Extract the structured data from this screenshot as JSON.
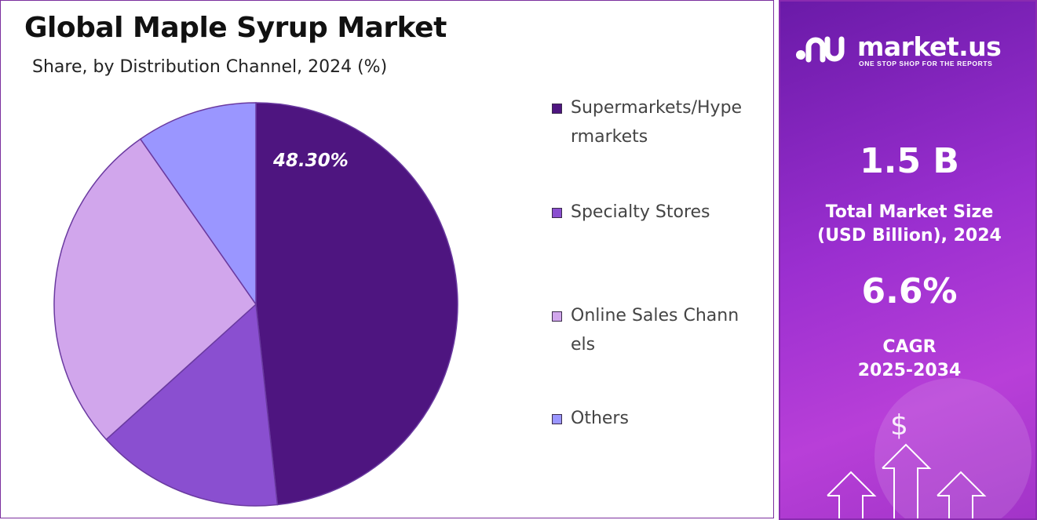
{
  "chart": {
    "title": "Global Maple Syrup Market",
    "subtitle": "Share, by  Distribution Channel, 2024 (%)"
  },
  "chart_data": {
    "type": "pie",
    "title": "Global Maple Syrup Market",
    "subtitle": "Share, by  Distribution Channel, 2024 (%)",
    "categories": [
      "Supermarkets/Hypermarkets",
      "Specialty Stores",
      "Online Sales Channels",
      "Others"
    ],
    "values": [
      48.3,
      15.0,
      27.0,
      9.7
    ],
    "data_labels": [
      "48.30%",
      "",
      "",
      ""
    ],
    "colors": [
      "#4e1580",
      "#8a4fd0",
      "#d1a6ec",
      "#9a96ff"
    ],
    "legend_position": "right"
  },
  "legend": {
    "items": [
      {
        "label": "Supermarkets/Hypermarkets",
        "color": "#4e1580"
      },
      {
        "label": "Specialty Stores",
        "color": "#8a4fd0"
      },
      {
        "label": "Online Sales Channels",
        "color": "#d1a6ec"
      },
      {
        "label": "Others",
        "color": "#9a96ff"
      }
    ]
  },
  "info": {
    "brand_name": "market.us",
    "brand_tagline": "ONE STOP SHOP FOR THE REPORTS",
    "market_size_value": "1.5 B",
    "market_size_label_1": "Total Market Size",
    "market_size_label_2": "(USD Billion), 2024",
    "cagr_value": "6.6%",
    "cagr_label_1": "CAGR",
    "cagr_label_2": "2025-2034",
    "icons": [
      "market-us-logo-icon",
      "dollar-icon",
      "growth-arrows-icon"
    ]
  }
}
